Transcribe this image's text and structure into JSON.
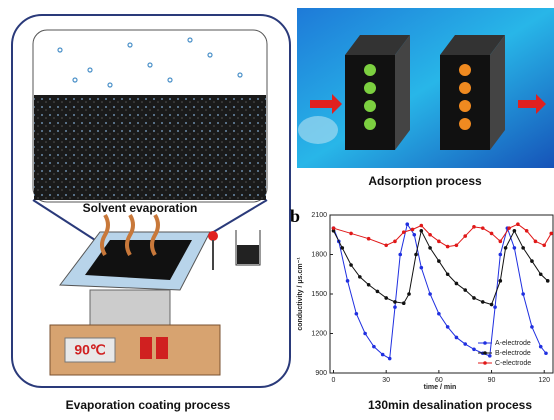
{
  "left_panel": {
    "label": "Solvent evaporation",
    "temperature": "90℃",
    "caption": "Evaporation coating process"
  },
  "top_right_panel": {
    "caption": "Adsorption process"
  },
  "chart_data": {
    "type": "line",
    "panel_label": "b",
    "caption": "130min desalination process",
    "x_label": "time / min",
    "y_label": "conductivity  /  μs.cm⁻¹",
    "xlim": [
      -2,
      125
    ],
    "xticks": [
      0,
      30,
      60,
      90,
      120
    ],
    "ylim": [
      900,
      2100
    ],
    "yticks": [
      900,
      1200,
      1500,
      1800,
      2100
    ],
    "series": [
      {
        "name": "A-electrode",
        "color": "#1f2fe0",
        "x": [
          0,
          3,
          8,
          13,
          18,
          23,
          28,
          32,
          35,
          38,
          42,
          46,
          50,
          55,
          60,
          65,
          70,
          75,
          80,
          85,
          89,
          92,
          95,
          99,
          103,
          108,
          113,
          118,
          121
        ],
        "values": [
          2000,
          1900,
          1600,
          1350,
          1200,
          1100,
          1040,
          1010,
          1400,
          1800,
          2030,
          1950,
          1700,
          1500,
          1350,
          1250,
          1170,
          1120,
          1080,
          1050,
          1030,
          1400,
          1800,
          2000,
          1850,
          1500,
          1250,
          1100,
          1050
        ]
      },
      {
        "name": "B-electrode",
        "color": "#111111",
        "x": [
          0,
          5,
          10,
          15,
          20,
          25,
          30,
          35,
          40,
          43,
          47,
          50,
          55,
          60,
          65,
          70,
          75,
          80,
          85,
          90,
          95,
          98,
          103,
          108,
          113,
          118,
          122
        ],
        "values": [
          1980,
          1850,
          1720,
          1630,
          1570,
          1520,
          1470,
          1440,
          1430,
          1500,
          1800,
          1980,
          1850,
          1750,
          1650,
          1580,
          1530,
          1470,
          1440,
          1420,
          1600,
          1850,
          1980,
          1850,
          1750,
          1650,
          1600
        ]
      },
      {
        "name": "C-electrode",
        "color": "#e01818",
        "x": [
          0,
          10,
          20,
          30,
          35,
          40,
          45,
          50,
          55,
          60,
          65,
          70,
          75,
          80,
          85,
          90,
          95,
          100,
          105,
          110,
          115,
          120,
          124
        ],
        "values": [
          2000,
          1960,
          1920,
          1870,
          1900,
          1970,
          1990,
          2020,
          1950,
          1900,
          1860,
          1870,
          1940,
          2010,
          2000,
          1960,
          1900,
          2000,
          2030,
          1980,
          1900,
          1870,
          1960
        ]
      }
    ]
  }
}
